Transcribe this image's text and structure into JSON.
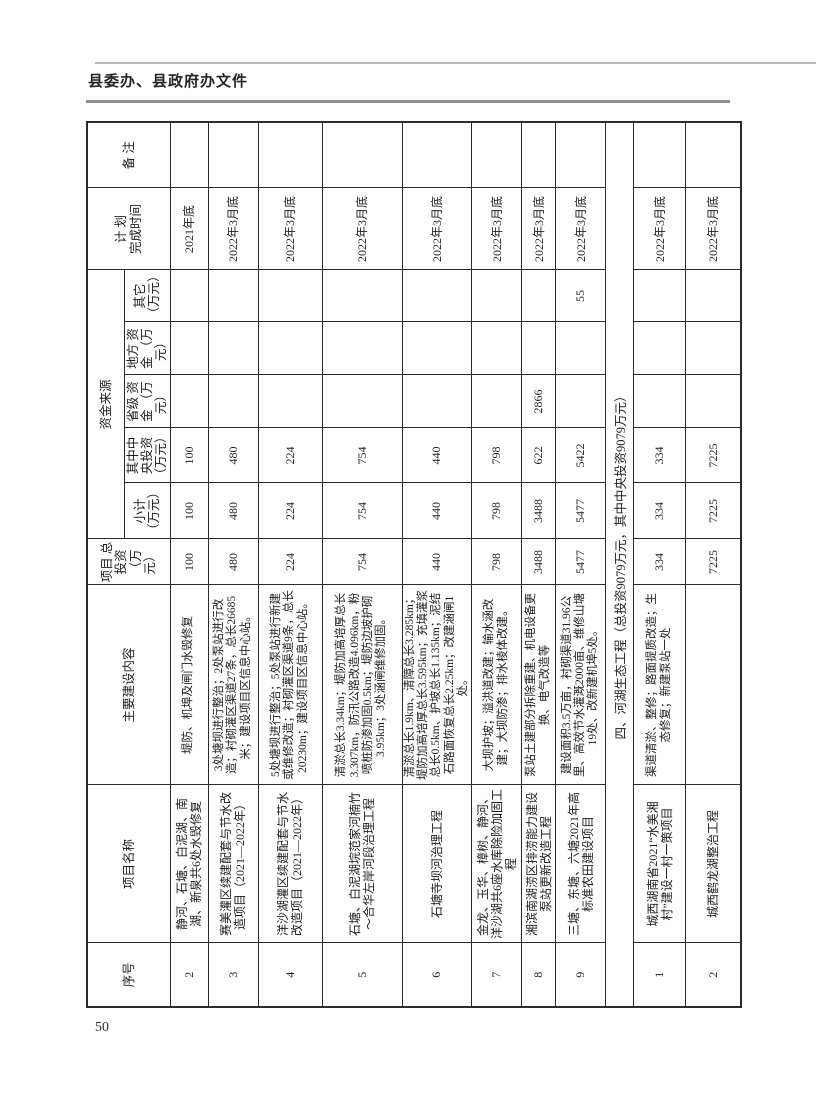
{
  "page": {
    "doc_header": "县委办、县政府办文件",
    "page_number": "50"
  },
  "table": {
    "headers": {
      "xuhao": "序号",
      "name": "项目名称",
      "content": "主要建设内容",
      "total_investment": "项目 总投资 （万元）",
      "funding_source": "资金来源",
      "subtotal": "小计 （万元）",
      "central": "其中中 央投资 （万元）",
      "provincial": "省级 资金 （万元）",
      "local": "地方 资金 （万元）",
      "other": "其它 （万元）",
      "plan_l1": "计 划",
      "plan_l2": "完成时间",
      "remark": "备 注"
    },
    "section_row": {
      "text": "四、河湖生态工程（总投资9079万元，其中中央投资9079万元）"
    },
    "rows": [
      {
        "no": "2",
        "name": "静河、石塘、白泥湖、南湖、新泉共6处水毁修复",
        "content": "堤防、机埠及闸门水毁修复",
        "total": "100",
        "subtotal": "100",
        "central": "100",
        "provincial": "",
        "local": "",
        "other": "",
        "plan": "2021年底",
        "remark": ""
      },
      {
        "no": "3",
        "name": "赛美灌区续建配套与节水改造项目（2021—2022年）",
        "content": "3处塘坝进行整治；2处泵站进行改造；衬砌灌区渠道27条，总长26685米；建设项目区信息中心站。",
        "total": "480",
        "subtotal": "480",
        "central": "480",
        "provincial": "",
        "local": "",
        "other": "",
        "plan": "2022年3月底",
        "remark": ""
      },
      {
        "no": "4",
        "name": "洋沙湖灌区续建配套与节水改造项目（2021—2022年）",
        "content": "5处塘坝进行整治；5处泵站进行新建或维修改造；衬砌灌区渠道9条，总长20230m；建设项目区信息中心站。",
        "total": "224",
        "subtotal": "224",
        "central": "224",
        "provincial": "",
        "local": "",
        "other": "",
        "plan": "2022年3月底",
        "remark": ""
      },
      {
        "no": "5",
        "name": "石塘、白泥湖垸范家河楠竹～合华左岸河段治理工程",
        "content": "清淤总长3.34km；堤防加高培厚总长3.307km，防汛公路改造4.096km，粉喷桩防渗加固0.5km；堤防边坡护砌3.95km；3处涵闸维修加固。",
        "total": "754",
        "subtotal": "754",
        "central": "754",
        "provincial": "",
        "local": "",
        "other": "",
        "plan": "2022年3月底",
        "remark": ""
      },
      {
        "no": "6",
        "name": "石塘寺坝河治理工程",
        "content": "清淤总长1.9km、清障总长3.285km；堤防加高培厚总长3.595km；充填灌浆总长0.5km、护坡总长1.135km；泥结石路面恢复总长2.25km；改建涵闸1处。",
        "total": "440",
        "subtotal": "440",
        "central": "440",
        "provincial": "",
        "local": "",
        "other": "",
        "plan": "2022年3月底",
        "remark": ""
      },
      {
        "no": "7",
        "name": "金龙、玉华、樟树、静河、洋沙湖共6座水库除险加固工程",
        "content": "大坝护坡；溢洪道改建；输水涵改建；大坝防渗；排水棱体改建。",
        "total": "798",
        "subtotal": "798",
        "central": "798",
        "provincial": "",
        "local": "",
        "other": "",
        "plan": "2022年3月底",
        "remark": ""
      },
      {
        "no": "8",
        "name": "湘滨南湖涝区排涝能力建设泵站更新改造工程",
        "content": "泵站土建部分拆除重建、机电设备更换、电气改造等",
        "total": "3488",
        "subtotal": "3488",
        "central": "622",
        "provincial": "2866",
        "local": "",
        "other": "",
        "plan": "2022年3月底",
        "remark": ""
      },
      {
        "no": "9",
        "name": "三塘、东塘、六塘2021年高标准农田建设项目",
        "content": "建设面积3.5万亩，衬砌渠道31.96公里、高效节水灌溉2000亩、维修山塘19处、改新建机埠5处。",
        "total": "5477",
        "subtotal": "5477",
        "central": "5422",
        "provincial": "",
        "local": "",
        "other": "55",
        "plan": "2022年3月底",
        "remark": ""
      },
      {
        "no": "1",
        "name": "城西湖南省2021“水美湘村”建设一村一策项目",
        "content": "渠道清淤、整修；路面提质改造；生态修复；新建泵站一处",
        "total": "334",
        "subtotal": "334",
        "central": "334",
        "provincial": "",
        "local": "",
        "other": "",
        "plan": "2022年3月底",
        "remark": ""
      },
      {
        "no": "2",
        "name": "城西鹤龙湖整治工程",
        "content": "",
        "total": "7225",
        "subtotal": "7225",
        "central": "7225",
        "provincial": "",
        "local": "",
        "other": "",
        "plan": "2022年3月底",
        "remark": ""
      }
    ]
  }
}
